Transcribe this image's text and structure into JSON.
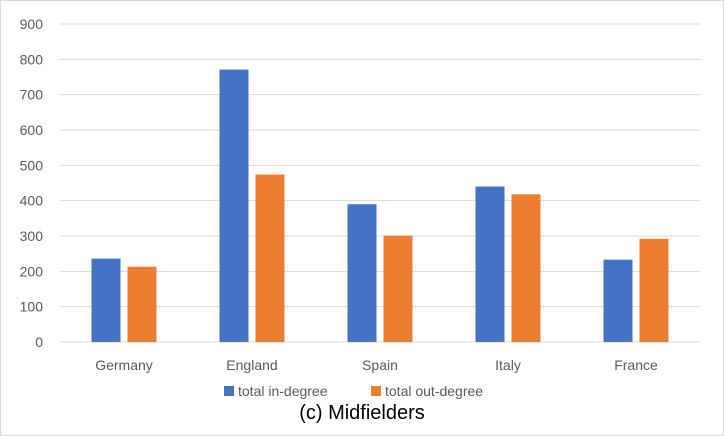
{
  "caption": "(c) Midfielders",
  "chart_data": {
    "type": "bar",
    "title": "",
    "xlabel": "",
    "ylabel": "",
    "categories": [
      "Germany",
      "England",
      "Spain",
      "Italy",
      "France"
    ],
    "series": [
      {
        "name": "total in-degree",
        "color": "#4472C4",
        "values": [
          236,
          771,
          390,
          440,
          233
        ]
      },
      {
        "name": "total out-degree",
        "color": "#ED7D31",
        "values": [
          213,
          474,
          301,
          418,
          292
        ]
      }
    ],
    "ylim": [
      0,
      900
    ],
    "yticks": [
      0,
      100,
      200,
      300,
      400,
      500,
      600,
      700,
      800,
      900
    ],
    "grid": true,
    "legend": "bottom"
  }
}
